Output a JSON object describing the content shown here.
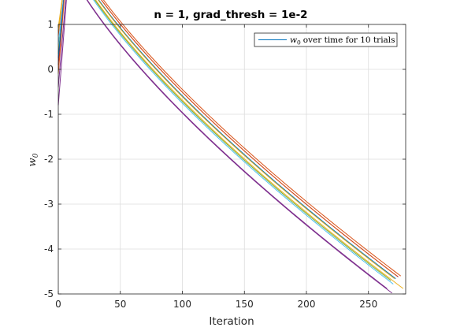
{
  "chart_data": {
    "type": "line",
    "title": "n = 1, grad_thresh = 1e-2",
    "xlabel": "Iteration",
    "ylabel": "w",
    "ylabel_subscript": "0",
    "xlim": [
      0,
      280
    ],
    "ylim": [
      -5,
      1
    ],
    "xticks": [
      0,
      50,
      100,
      150,
      200,
      250
    ],
    "yticks": [
      1,
      0,
      -1,
      -2,
      -3,
      -4,
      -5
    ],
    "grid": true,
    "legend": {
      "position": "top-right",
      "entries": [
        {
          "symbol": "w",
          "symbol_subscript": "0",
          "text": "over time for 10 trials",
          "color": "#0072BD"
        }
      ]
    },
    "series": [
      {
        "color": "#D95319",
        "start": 0.75,
        "end_x": 276,
        "end_y": -4.6
      },
      {
        "color": "#EDB120",
        "start": 0.95,
        "end_x": 278,
        "end_y": -4.88
      },
      {
        "color": "#7E2F8E",
        "start": -0.8,
        "end_x": 265,
        "end_y": -4.88
      },
      {
        "color": "#77AC30",
        "start": 0.35,
        "end_x": 268,
        "end_y": -4.7
      },
      {
        "color": "#4DBEEE",
        "start": 0.55,
        "end_x": 270,
        "end_y": -4.78
      },
      {
        "color": "#A2142F",
        "start": 0.1,
        "end_x": 274,
        "end_y": -4.62
      },
      {
        "color": "#0072BD",
        "start": 0.25,
        "end_x": 272,
        "end_y": -4.66
      },
      {
        "color": "#D95319",
        "start": -0.1,
        "end_x": 273,
        "end_y": -4.6
      },
      {
        "color": "#EDB120",
        "start": 0.85,
        "end_x": 271,
        "end_y": -4.66
      },
      {
        "color": "#7E2F8E",
        "start": -0.4,
        "end_x": 269,
        "end_y": -4.98
      }
    ]
  }
}
